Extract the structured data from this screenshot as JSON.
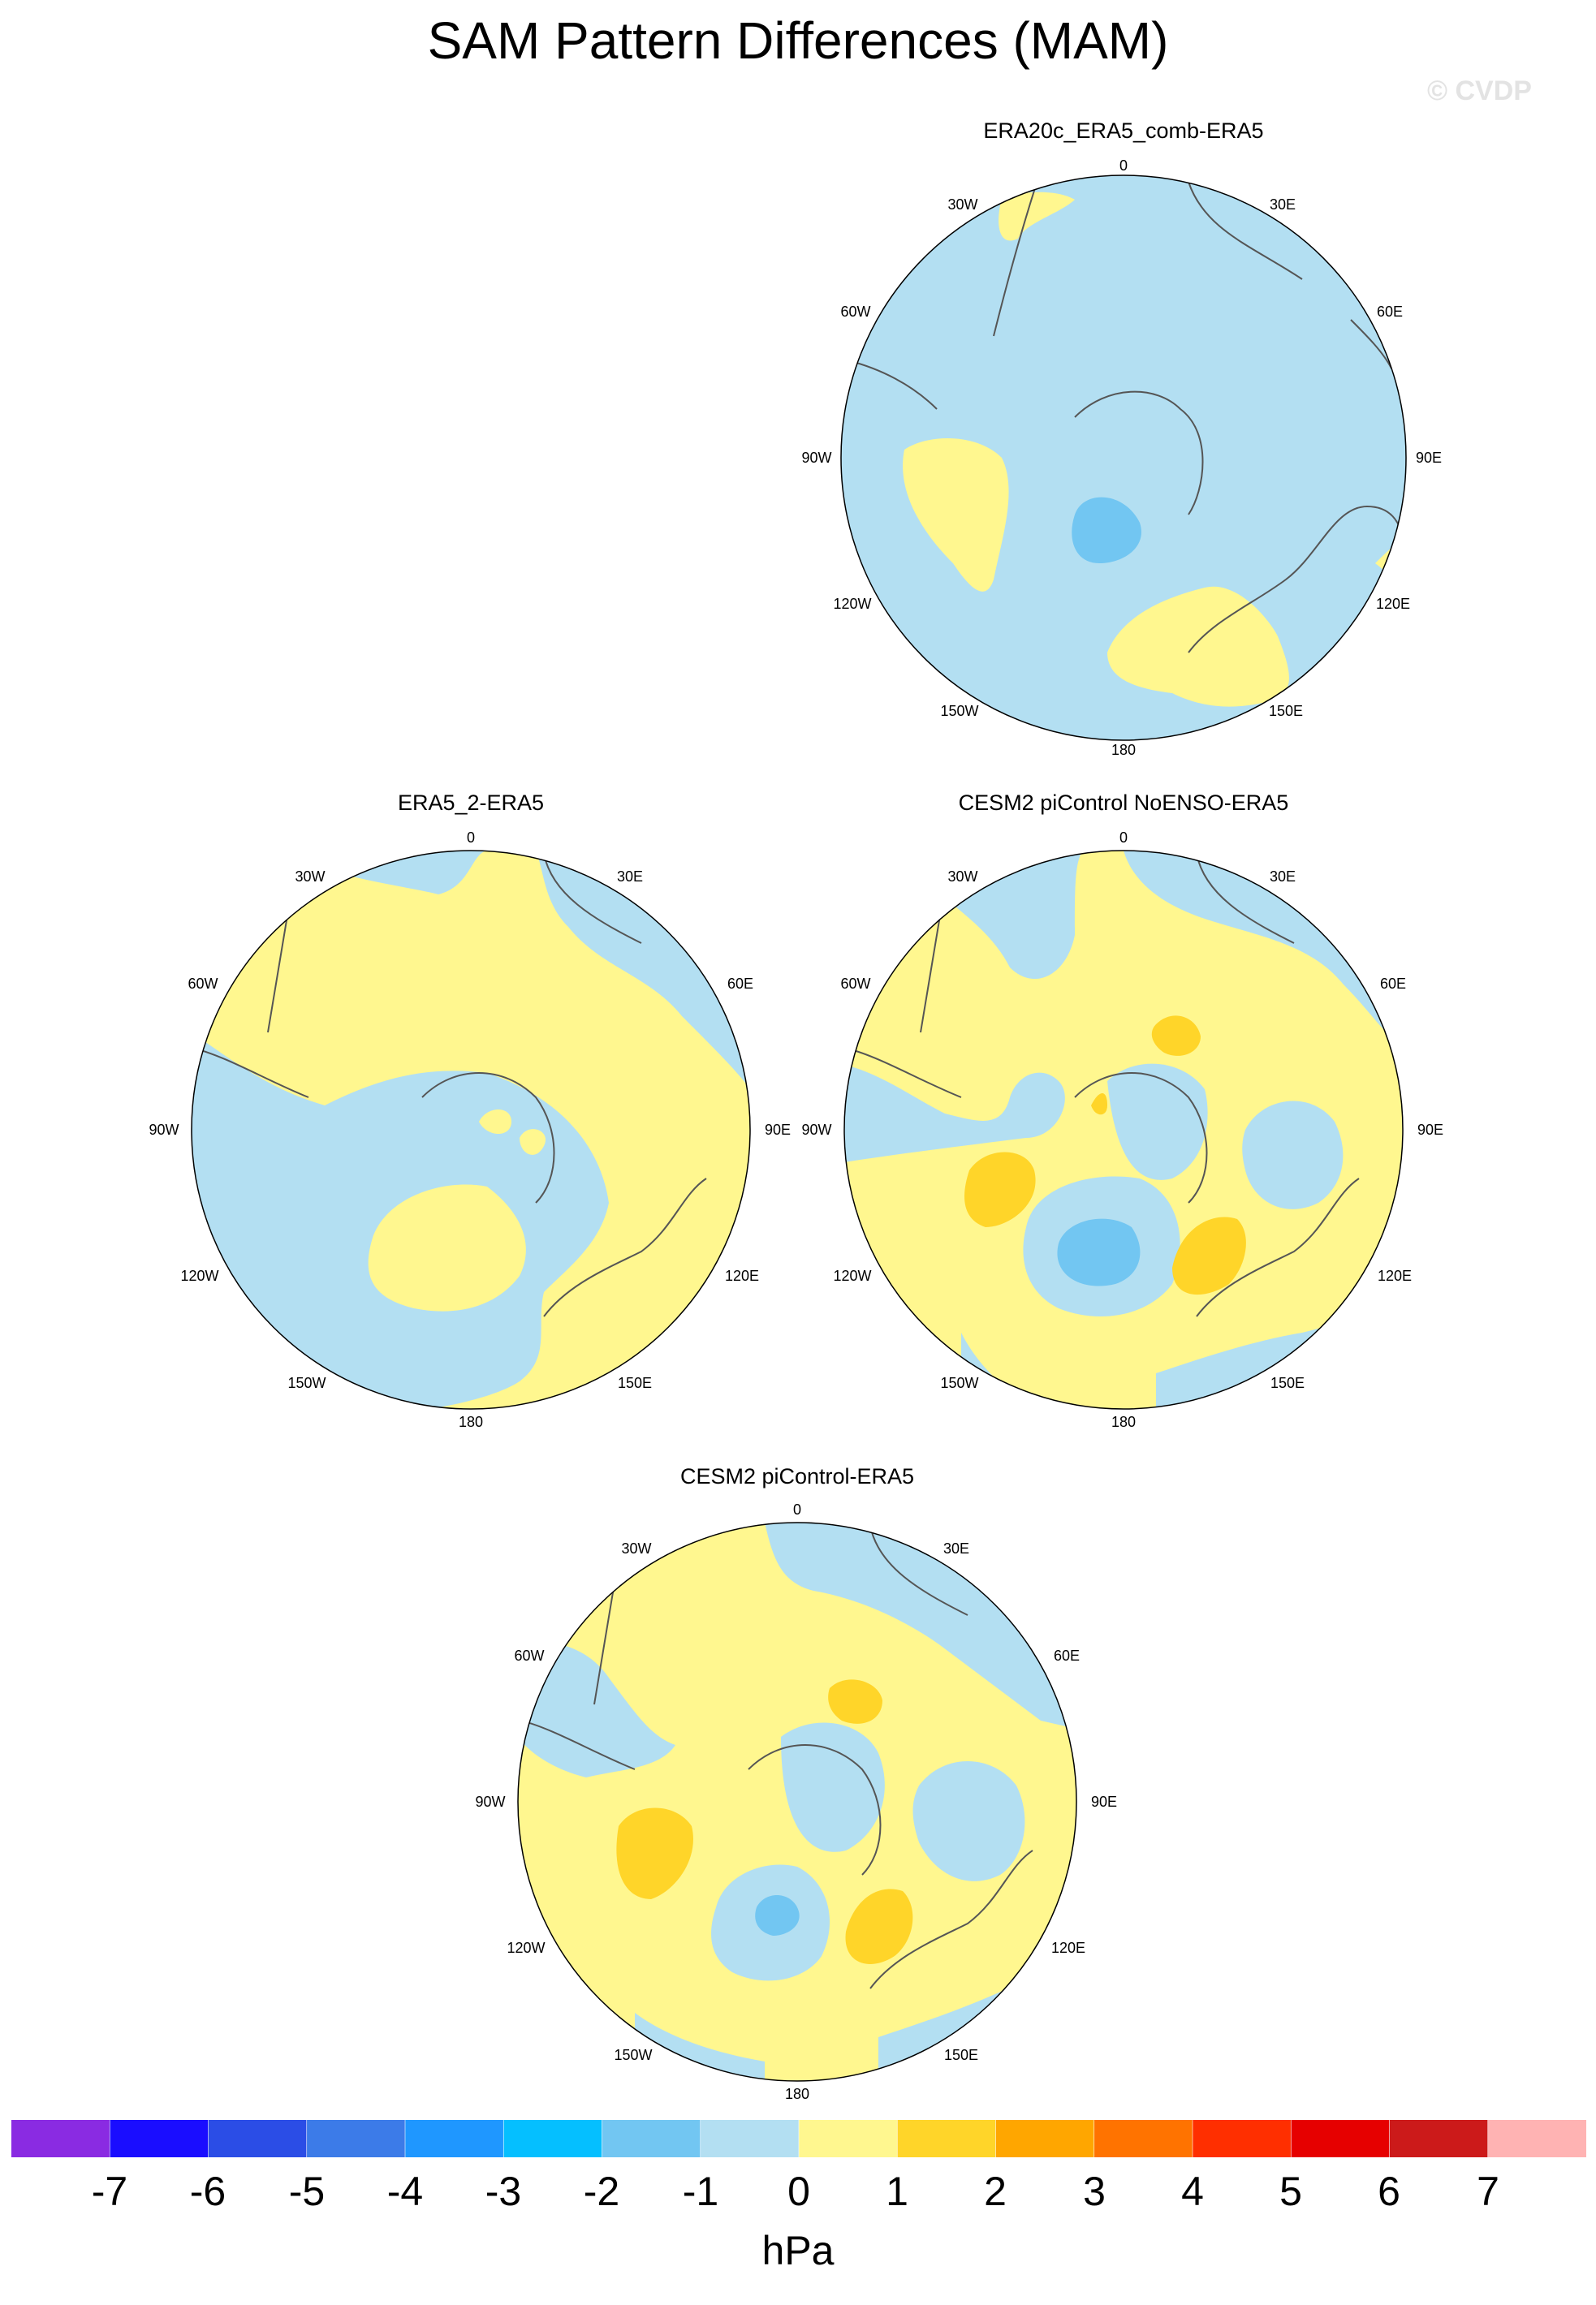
{
  "title": "SAM Pattern Differences (MAM)",
  "watermark": "© CVDP",
  "longitude_labels": [
    "0",
    "30E",
    "60E",
    "90E",
    "120E",
    "150E",
    "180",
    "150W",
    "120W",
    "90W",
    "60W",
    "30W"
  ],
  "panels": [
    {
      "id": "p1",
      "title": "ERA20c_ERA5_comb-ERA5"
    },
    {
      "id": "p2",
      "title": "ERA5_2-ERA5"
    },
    {
      "id": "p3",
      "title": "CESM2 piControl NoENSO-ERA5"
    },
    {
      "id": "p4",
      "title": "CESM2 piControl-ERA5"
    }
  ],
  "colorbar": {
    "unit": "hPa",
    "tick_labels": [
      "-7",
      "-6",
      "-5",
      "-4",
      "-3",
      "-2",
      "-1",
      "0",
      "1",
      "2",
      "3",
      "4",
      "5",
      "6",
      "7"
    ],
    "colors": [
      "#8a2be2",
      "#1a0dff",
      "#2b4de6",
      "#3c7be8",
      "#1f97ff",
      "#05bfff",
      "#72c6f2",
      "#b3dff2",
      "#fff78f",
      "#ffd529",
      "#ffa600",
      "#ff7300",
      "#ff2f00",
      "#e60000",
      "#cc1a1a",
      "#ffb3b3"
    ]
  },
  "palette": {
    "neg1_0": "#b3dff2",
    "neg2_neg1": "#72c6f2",
    "zero_1": "#fff78f",
    "one_2": "#ffd529",
    "land_line": "#555555"
  }
}
